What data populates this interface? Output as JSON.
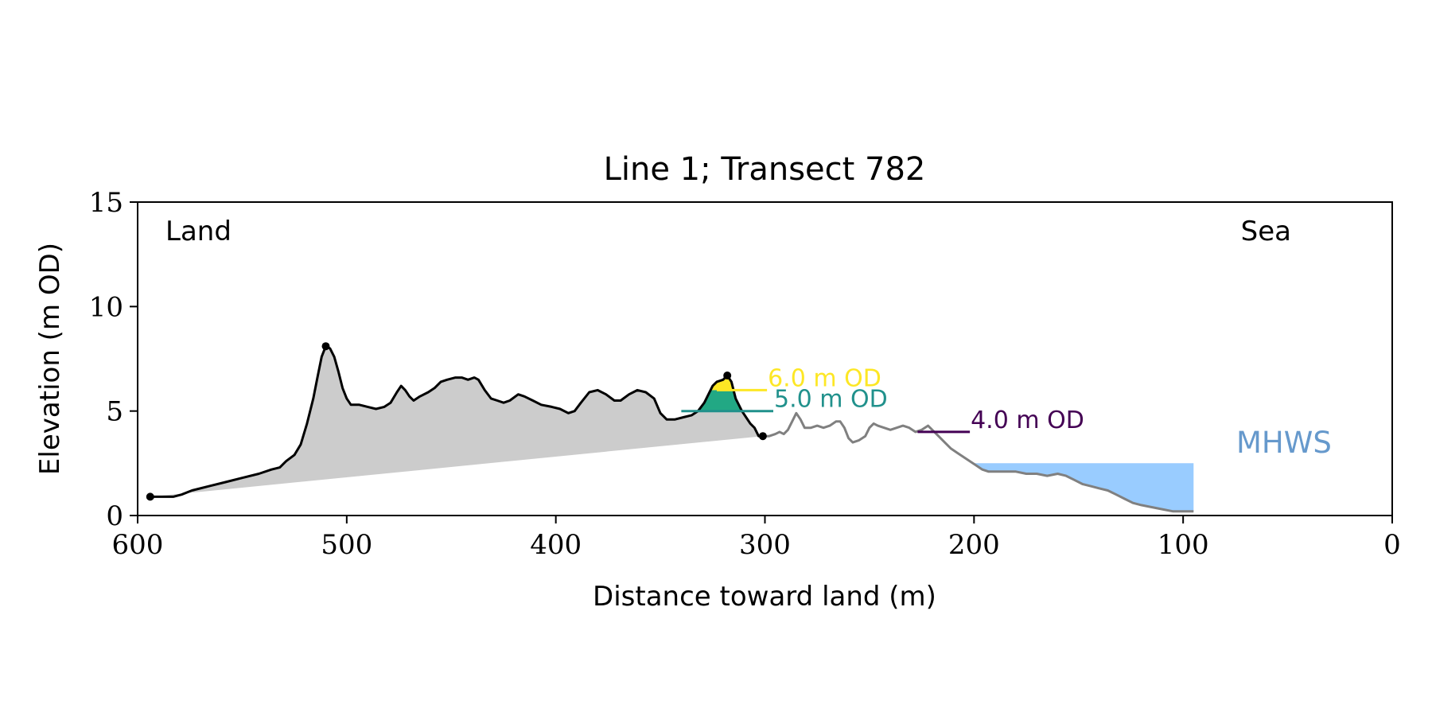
{
  "chart_data": {
    "type": "area",
    "title": "Line 1; Transect 782",
    "xlabel": "Distance toward land (m)",
    "ylabel": "Elevation (m OD)",
    "xlim": [
      600,
      0
    ],
    "ylim": [
      0,
      15
    ],
    "x_ticks": [
      600,
      500,
      400,
      300,
      200,
      100,
      0
    ],
    "y_ticks": [
      0,
      5,
      10,
      15
    ],
    "x_tick_labels": [
      "600",
      "500",
      "400",
      "300",
      "200",
      "100",
      "0"
    ],
    "y_tick_labels": [
      "0",
      "5",
      "10",
      "15"
    ],
    "grid": false,
    "annotations": {
      "land": "Land",
      "sea": "Sea",
      "mhws": "MHWS"
    },
    "colors": {
      "dune_fill": "#cccccc",
      "profile_line": "#000000",
      "profile_seaward": "#808080",
      "mhws_fill": "#99ccff",
      "mhws_text": "#6699cc",
      "level_6": "#fde725",
      "level_5": "#21918c",
      "level_4": "#440154",
      "fill_6": "#fde725",
      "fill_5": "#22a884"
    },
    "series": [
      {
        "name": "profile",
        "points": [
          [
            594,
            0.9
          ],
          [
            589,
            0.9
          ],
          [
            583,
            0.9
          ],
          [
            579,
            1.0
          ],
          [
            574,
            1.2
          ],
          [
            566,
            1.4
          ],
          [
            558,
            1.6
          ],
          [
            550,
            1.8
          ],
          [
            542,
            2.0
          ],
          [
            536,
            2.2
          ],
          [
            532,
            2.3
          ],
          [
            529,
            2.6
          ],
          [
            525,
            2.9
          ],
          [
            522,
            3.4
          ],
          [
            519,
            4.4
          ],
          [
            516,
            5.6
          ],
          [
            514,
            6.6
          ],
          [
            512,
            7.6
          ],
          [
            510,
            8.1
          ],
          [
            508,
            8.0
          ],
          [
            506,
            7.6
          ],
          [
            504,
            6.9
          ],
          [
            502,
            6.1
          ],
          [
            500,
            5.6
          ],
          [
            498,
            5.3
          ],
          [
            494,
            5.3
          ],
          [
            490,
            5.2
          ],
          [
            486,
            5.1
          ],
          [
            482,
            5.2
          ],
          [
            479,
            5.4
          ],
          [
            476,
            5.9
          ],
          [
            474,
            6.2
          ],
          [
            472,
            6.0
          ],
          [
            470,
            5.7
          ],
          [
            468,
            5.5
          ],
          [
            465,
            5.7
          ],
          [
            461,
            5.9
          ],
          [
            458,
            6.1
          ],
          [
            455,
            6.4
          ],
          [
            452,
            6.5
          ],
          [
            448,
            6.6
          ],
          [
            445,
            6.6
          ],
          [
            442,
            6.5
          ],
          [
            439,
            6.6
          ],
          [
            437,
            6.5
          ],
          [
            434,
            6.0
          ],
          [
            431,
            5.6
          ],
          [
            428,
            5.5
          ],
          [
            425,
            5.4
          ],
          [
            422,
            5.5
          ],
          [
            418,
            5.8
          ],
          [
            415,
            5.7
          ],
          [
            411,
            5.5
          ],
          [
            407,
            5.3
          ],
          [
            402,
            5.2
          ],
          [
            398,
            5.1
          ],
          [
            394,
            4.9
          ],
          [
            391,
            5.0
          ],
          [
            388,
            5.4
          ],
          [
            384,
            5.9
          ],
          [
            380,
            6.0
          ],
          [
            376,
            5.8
          ],
          [
            372,
            5.5
          ],
          [
            369,
            5.5
          ],
          [
            365,
            5.8
          ],
          [
            361,
            6.0
          ],
          [
            357,
            5.9
          ],
          [
            353,
            5.6
          ],
          [
            350,
            4.9
          ],
          [
            347,
            4.6
          ],
          [
            343,
            4.6
          ],
          [
            339,
            4.7
          ],
          [
            335,
            4.8
          ],
          [
            332,
            5.0
          ],
          [
            329,
            5.4
          ],
          [
            327,
            5.8
          ],
          [
            325,
            6.2
          ],
          [
            323,
            6.4
          ],
          [
            320,
            6.5
          ],
          [
            318,
            6.7
          ],
          [
            316,
            6.4
          ],
          [
            314,
            5.6
          ],
          [
            311,
            5.0
          ],
          [
            309,
            4.7
          ],
          [
            307,
            4.4
          ],
          [
            305,
            4.2
          ],
          [
            303,
            3.8
          ],
          [
            301,
            3.8
          ]
        ]
      },
      {
        "name": "profile_seaward",
        "points": [
          [
            301,
            3.8
          ],
          [
            298,
            3.8
          ],
          [
            295,
            3.9
          ],
          [
            293,
            4.0
          ],
          [
            291,
            3.9
          ],
          [
            289,
            4.1
          ],
          [
            287,
            4.5
          ],
          [
            285,
            4.9
          ],
          [
            283,
            4.6
          ],
          [
            281,
            4.2
          ],
          [
            278,
            4.2
          ],
          [
            275,
            4.3
          ],
          [
            272,
            4.2
          ],
          [
            269,
            4.3
          ],
          [
            266,
            4.5
          ],
          [
            264,
            4.5
          ],
          [
            262,
            4.2
          ],
          [
            260,
            3.7
          ],
          [
            258,
            3.5
          ],
          [
            255,
            3.6
          ],
          [
            252,
            3.8
          ],
          [
            250,
            4.2
          ],
          [
            248,
            4.4
          ],
          [
            246,
            4.3
          ],
          [
            243,
            4.2
          ],
          [
            240,
            4.1
          ],
          [
            237,
            4.2
          ],
          [
            234,
            4.3
          ],
          [
            231,
            4.2
          ],
          [
            228,
            4.0
          ],
          [
            225,
            4.1
          ],
          [
            222,
            4.3
          ],
          [
            220,
            4.1
          ],
          [
            217,
            3.8
          ],
          [
            214,
            3.5
          ],
          [
            211,
            3.2
          ],
          [
            208,
            3.0
          ],
          [
            205,
            2.8
          ],
          [
            202,
            2.6
          ],
          [
            199,
            2.4
          ],
          [
            196,
            2.2
          ],
          [
            193,
            2.1
          ],
          [
            189,
            2.1
          ],
          [
            185,
            2.1
          ],
          [
            180,
            2.1
          ],
          [
            175,
            2.0
          ],
          [
            170,
            2.0
          ],
          [
            165,
            1.9
          ],
          [
            160,
            2.0
          ],
          [
            156,
            1.9
          ],
          [
            152,
            1.7
          ],
          [
            148,
            1.5
          ],
          [
            144,
            1.4
          ],
          [
            140,
            1.3
          ],
          [
            136,
            1.2
          ],
          [
            132,
            1.0
          ],
          [
            128,
            0.8
          ],
          [
            124,
            0.6
          ],
          [
            120,
            0.5
          ],
          [
            115,
            0.4
          ],
          [
            110,
            0.3
          ],
          [
            105,
            0.2
          ],
          [
            99,
            0.2
          ],
          [
            95,
            0.2
          ]
        ]
      }
    ],
    "dune_base": [
      [
        594,
        0.9
      ],
      [
        301,
        3.8
      ]
    ],
    "markers": [
      [
        594,
        0.9
      ],
      [
        510,
        8.1
      ],
      [
        318,
        6.7
      ],
      [
        301,
        3.8
      ]
    ],
    "mhws": {
      "level": 2.5,
      "x_start": 200,
      "x_end": 95
    },
    "levels": [
      {
        "label": "6.0 m OD",
        "value": 6.0,
        "x_start": 323,
        "x_end": 299
      },
      {
        "label": "5.0 m OD",
        "value": 5.0,
        "x_start": 340,
        "x_end": 296
      },
      {
        "label": "4.0 m OD",
        "value": 4.0,
        "x_start": 227,
        "x_end": 202
      }
    ]
  }
}
